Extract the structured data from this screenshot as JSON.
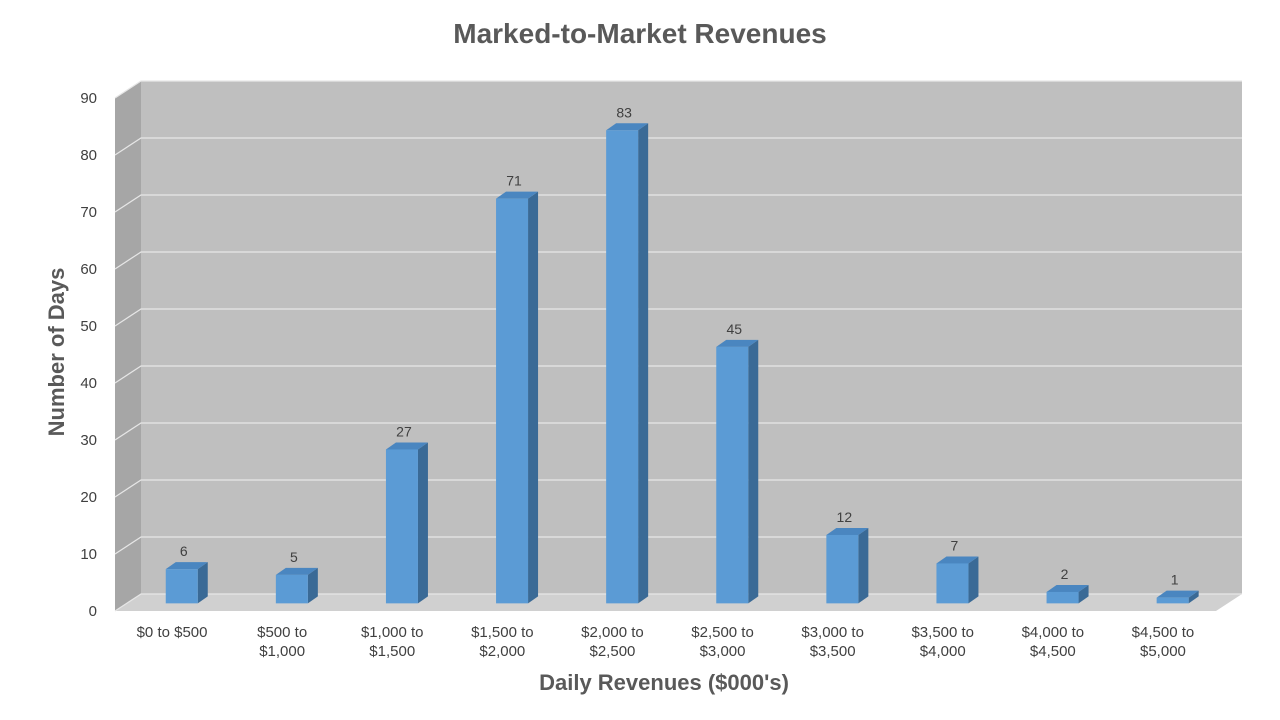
{
  "chart_data": {
    "type": "bar",
    "title": "Marked-to-Market Revenues",
    "xlabel": "Daily Revenues ($000's)",
    "ylabel": "Number of Days",
    "ylim": [
      0,
      90
    ],
    "yticks": [
      0,
      10,
      20,
      30,
      40,
      50,
      60,
      70,
      80,
      90
    ],
    "grid": true,
    "legend": "none",
    "three_d": true,
    "categories": [
      [
        "$0 to $500"
      ],
      [
        "$500 to",
        "$1,000"
      ],
      [
        "$1,000 to",
        "$1,500"
      ],
      [
        "$1,500 to",
        "$2,000"
      ],
      [
        "$2,000 to",
        "$2,500"
      ],
      [
        "$2,500 to",
        "$3,000"
      ],
      [
        "$3,000 to",
        "$3,500"
      ],
      [
        "$3,500 to",
        "$4,000"
      ],
      [
        "$4,000 to",
        "$4,500"
      ],
      [
        "$4,500 to",
        "$5,000"
      ]
    ],
    "values": [
      6,
      5,
      27,
      71,
      83,
      45,
      12,
      7,
      2,
      1
    ],
    "colors": {
      "bar_front": "#5b9bd5",
      "bar_side": "#3a6a96",
      "bar_top": "#4a86c0",
      "back_wall": "#bfbfbf",
      "side_wall": "#a6a6a6",
      "floor": "#d0d0d0",
      "gridline": "#e6e6e6"
    }
  }
}
